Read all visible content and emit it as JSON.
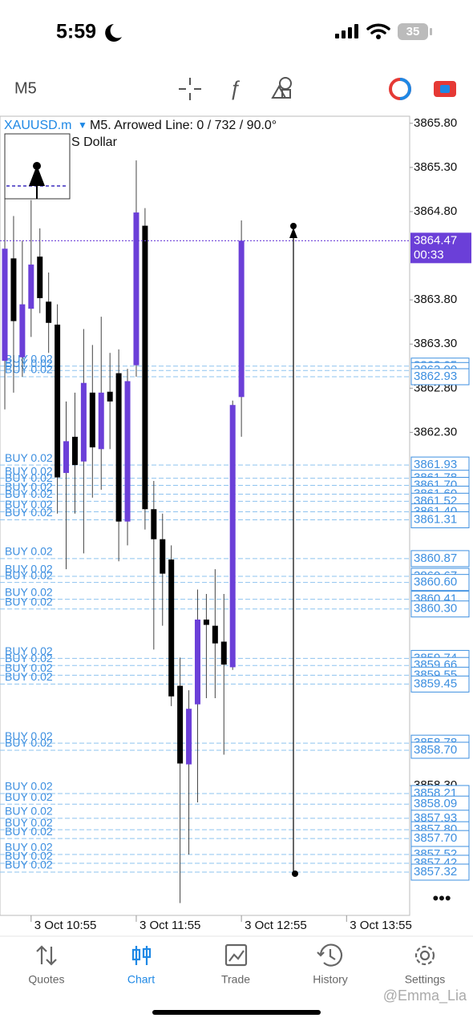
{
  "status_bar": {
    "time": "5:59",
    "battery": "35"
  },
  "toolbar": {
    "timeframe": "M5"
  },
  "chart_data": {
    "type": "candlestick",
    "symbol": "XAUUSD.m",
    "info": "M5. Arrowed Line: 0 / 732 / 90.0°",
    "description": "S Dollar",
    "countdown": "00:33",
    "current_price": 3864.47,
    "up_color": "#6b3fd8",
    "down_color": "#000000",
    "order_color": "#3d8fe0",
    "ylim": [
      3856.83,
      3865.88
    ],
    "yticks": [
      {
        "value": 3865.8,
        "label": "3865.80"
      },
      {
        "value": 3865.3,
        "label": "3865.30"
      },
      {
        "value": 3864.8,
        "label": "3864.80"
      },
      {
        "value": 3863.8,
        "label": "3863.80"
      },
      {
        "value": 3863.3,
        "label": "3863.30"
      },
      {
        "value": 3862.8,
        "label": "3862.80"
      },
      {
        "value": 3862.3,
        "label": "3862.30"
      },
      {
        "value": 3858.3,
        "label": "3858.30"
      }
    ],
    "xlim": [
      -0.55,
      46.2
    ],
    "xticks": [
      {
        "value": 3,
        "label": "3 Oct 10:55"
      },
      {
        "value": 15,
        "label": "3 Oct 11:55"
      },
      {
        "value": 27,
        "label": "3 Oct 12:55"
      },
      {
        "value": 39,
        "label": "3 Oct 13:55"
      }
    ],
    "open": [
      3863.11,
      3864.27,
      3863.15,
      3863.7,
      3864.29,
      3863.78,
      3863.52,
      3861.84,
      3862.25,
      3861.97,
      3862.75,
      3862.11,
      3862.76,
      3862.97,
      3861.29,
      3863.06,
      3864.64,
      3861.43,
      3861.09,
      3860.86,
      3859.43,
      3858.54,
      3859.22,
      3860.18,
      3860.11,
      3859.93,
      3859.64,
      3862.7
    ],
    "high": [
      3864.97,
      3864.75,
      3864.47,
      3864.93,
      3864.61,
      3864.11,
      3863.75,
      3862.65,
      3862.75,
      3863.47,
      3863.29,
      3863.61,
      3863.2,
      3863.24,
      3863.02,
      3865.38,
      3864.84,
      3861.75,
      3861.38,
      3861.02,
      3859.75,
      3859.38,
      3860.52,
      3860.47,
      3860.75,
      3860.47,
      3862.66,
      3864.7
    ],
    "low": [
      3862.56,
      3862.75,
      3862.93,
      3863.38,
      3863.65,
      3863.2,
      3861.38,
      3860.75,
      3861.38,
      3860.93,
      3861.56,
      3861.65,
      3862.11,
      3860.84,
      3861.02,
      3862.93,
      3861.2,
      3859.84,
      3860.11,
      3859.2,
      3856.97,
      3857.52,
      3858.11,
      3859.29,
      3859.29,
      3858.65,
      3859.61,
      3862.25
    ],
    "close": [
      3864.38,
      3863.56,
      3863.75,
      3864.2,
      3863.82,
      3863.54,
      3861.79,
      3862.2,
      3861.93,
      3862.86,
      3862.13,
      3862.75,
      3862.65,
      3861.29,
      3862.88,
      3864.79,
      3861.43,
      3861.09,
      3860.7,
      3859.31,
      3858.55,
      3859.17,
      3860.18,
      3860.12,
      3859.91,
      3859.67,
      3862.61,
      3864.47
    ],
    "orders": [
      {
        "label": "BUY 0.02",
        "price": {
          "value": 3863.05,
          "label": "3863.05"
        }
      },
      {
        "label": "BUY 0.02",
        "price": {
          "value": 3863,
          "label": "3863.00"
        }
      },
      {
        "label": "BUY 0.02",
        "price": {
          "value": 3862.93,
          "label": "3862.93"
        }
      },
      {
        "label": "BUY 0.02",
        "price": {
          "value": 3861.93,
          "label": "3861.93"
        }
      },
      {
        "label": "BUY 0.02",
        "price": {
          "value": 3861.78,
          "label": "3861.78"
        }
      },
      {
        "label": "BUY 0.02",
        "price": {
          "value": 3861.7,
          "label": "3861.70"
        }
      },
      {
        "label": "BUY 0.02",
        "price": {
          "value": 3861.6,
          "label": "3861.60"
        }
      },
      {
        "label": "BUY 0.02",
        "price": {
          "value": 3861.52,
          "label": "3861.52"
        }
      },
      {
        "label": "BUY 0.02",
        "price": {
          "value": 3861.4,
          "label": "3861.40"
        }
      },
      {
        "label": "BUY 0.02",
        "price": {
          "value": 3861.31,
          "label": "3861.31"
        }
      },
      {
        "label": "BUY 0.02",
        "price": {
          "value": 3860.87,
          "label": "3860.87"
        }
      },
      {
        "label": "BUY 0.02",
        "price": {
          "value": 3860.67,
          "label": "3860.67"
        }
      },
      {
        "label": "BUY 0.02",
        "price": {
          "value": 3860.6,
          "label": "3860.60"
        }
      },
      {
        "label": "BUY 0.02",
        "price": {
          "value": 3860.41,
          "label": "3860.41"
        }
      },
      {
        "label": "BUY 0.02",
        "price": {
          "value": 3860.3,
          "label": "3860.30"
        }
      },
      {
        "label": "BUY 0.02",
        "price": {
          "value": 3859.74,
          "label": "3859.74"
        }
      },
      {
        "label": "BUY 0.02",
        "price": {
          "value": 3859.66,
          "label": "3859.66"
        }
      },
      {
        "label": "BUY 0.02",
        "price": {
          "value": 3859.55,
          "label": "3859.55"
        }
      },
      {
        "label": "BUY 0.02",
        "price": {
          "value": 3859.45,
          "label": "3859.45"
        }
      },
      {
        "label": "BUY 0.02",
        "price": {
          "value": 3858.78,
          "label": "3858.78"
        }
      },
      {
        "label": "BUY 0.02",
        "price": {
          "value": 3858.7,
          "label": "3858.70"
        }
      },
      {
        "label": "BUY 0.02",
        "price": {
          "value": 3858.21,
          "label": "3858.21"
        }
      },
      {
        "label": "BUY 0.02",
        "price": {
          "value": 3858.09,
          "label": "3858.09"
        }
      },
      {
        "label": "BUY 0.02",
        "price": {
          "value": 3857.93,
          "label": "3857.93"
        }
      },
      {
        "label": "BUY 0.02",
        "price": {
          "value": 3857.8,
          "label": "3857.80"
        }
      },
      {
        "label": "BUY 0.02",
        "price": {
          "value": 3857.7,
          "label": "3857.70"
        }
      },
      {
        "label": "BUY 0.02",
        "price": {
          "value": 3857.52,
          "label": "3857.52"
        }
      },
      {
        "label": "BUY 0.02",
        "price": {
          "value": 3857.42,
          "label": "3857.42"
        }
      },
      {
        "label": "BUY 0.02",
        "price": {
          "value": 3857.32,
          "label": "3857.32"
        }
      }
    ]
  },
  "tab_bar": {
    "tabs": [
      "Quotes",
      "Chart",
      "Trade",
      "History",
      "Settings"
    ],
    "active": 1
  },
  "watermark": "@Emma_Lia"
}
